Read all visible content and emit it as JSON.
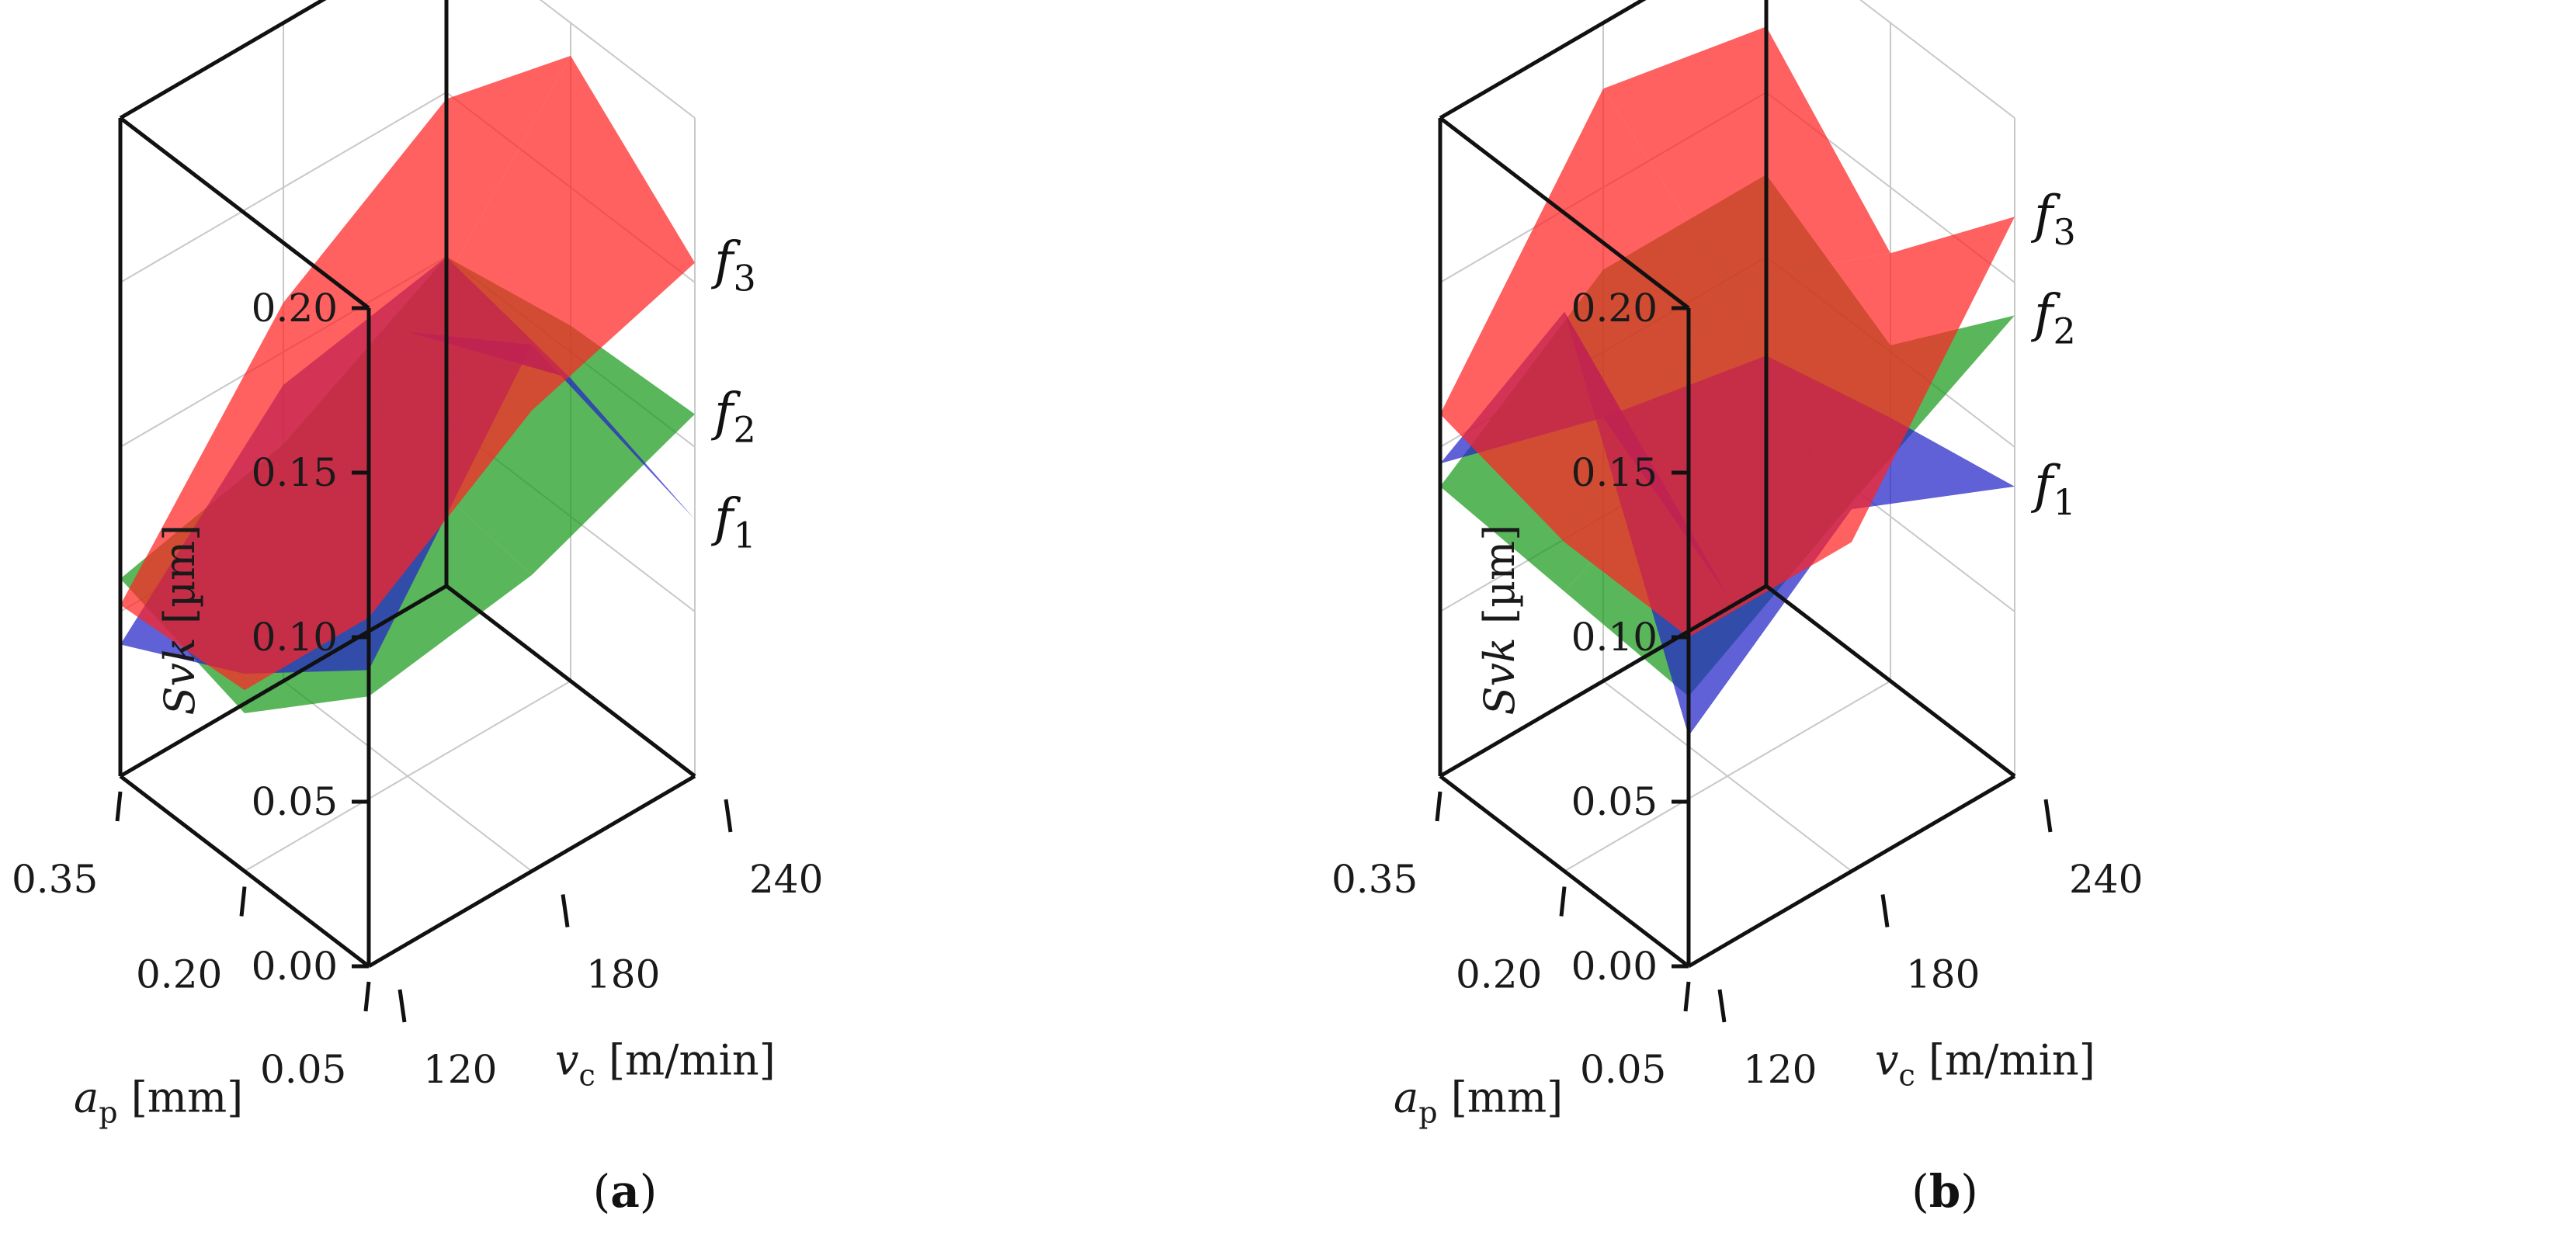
{
  "figure": {
    "panel_labels": [
      {
        "open": "(",
        "letter": "a",
        "close": ")"
      },
      {
        "open": "(",
        "letter": "b",
        "close": ")"
      }
    ]
  },
  "chart_data": [
    {
      "type": "surface3d",
      "panel": "a",
      "zlabel": {
        "main": "Svk",
        "unit": "[µm]"
      },
      "xlabel": {
        "main": "a",
        "sub": "p",
        "unit": "[mm]"
      },
      "ylabel": {
        "main": "v",
        "sub": "c",
        "unit": "[m/min]"
      },
      "zlim": [
        0,
        0.2
      ],
      "z_ticks": [
        "0.00",
        "0.05",
        "0.10",
        "0.15",
        "0.20"
      ],
      "x_ticks": [
        "0.05",
        "0.20",
        "0.35"
      ],
      "y_ticks": [
        "120",
        "180",
        "240"
      ],
      "x_values": [
        0.05,
        0.2,
        0.35
      ],
      "y_values": [
        120,
        180,
        240
      ],
      "series": [
        {
          "name": "f",
          "sub": "2",
          "color": "#1a9a1a",
          "z": [
            [
              0.082,
              0.09,
              0.11
            ],
            [
              0.048,
              0.096,
              0.108
            ],
            [
              0.06,
              0.072,
              0.1
            ]
          ]
        },
        {
          "name": "f",
          "sub": "1",
          "color": "#2323c8",
          "z": [
            [
              0.09,
              0.16,
              0.078
            ],
            [
              0.06,
              0.135,
              0.092
            ],
            [
              0.04,
              0.09,
              0.1
            ]
          ]
        },
        {
          "name": "f",
          "sub": "3",
          "color": "#ff2222",
          "z": [
            [
              0.106,
              0.14,
              0.156
            ],
            [
              0.055,
              0.13,
              0.19
            ],
            [
              0.052,
              0.115,
              0.148
            ]
          ]
        }
      ]
    },
    {
      "type": "surface3d",
      "panel": "b",
      "zlabel": {
        "main": "Svk",
        "unit": "[µm]"
      },
      "xlabel": {
        "main": "a",
        "sub": "p",
        "unit": "[mm]"
      },
      "ylabel": {
        "main": "v",
        "sub": "c",
        "unit": "[m/min]"
      },
      "zlim": [
        0,
        0.2
      ],
      "z_ticks": [
        "0.00",
        "0.05",
        "0.10",
        "0.15",
        "0.20"
      ],
      "x_ticks": [
        "0.05",
        "0.20",
        "0.35"
      ],
      "y_ticks": [
        "120",
        "180",
        "240"
      ],
      "x_values": [
        0.05,
        0.2,
        0.35
      ],
      "y_values": [
        120,
        180,
        240
      ],
      "series": [
        {
          "name": "f",
          "sub": "2",
          "color": "#1a9a1a",
          "z": [
            [
              0.082,
              0.112,
              0.14
            ],
            [
              0.085,
              0.11,
              0.102
            ],
            [
              0.088,
              0.125,
              0.125
            ]
          ]
        },
        {
          "name": "f",
          "sub": "1",
          "color": "#2323c8",
          "z": [
            [
              0.07,
              0.11,
              0.088
            ],
            [
              0.17,
              0.055,
              0.08
            ],
            [
              0.095,
              0.08,
              0.07
            ]
          ]
        },
        {
          "name": "f",
          "sub": "3",
          "color": "#ff2222",
          "z": [
            [
              0.1,
              0.1,
              0.17
            ],
            [
              0.1,
              0.15,
              0.13
            ],
            [
              0.11,
              0.18,
              0.17
            ]
          ]
        }
      ]
    }
  ]
}
